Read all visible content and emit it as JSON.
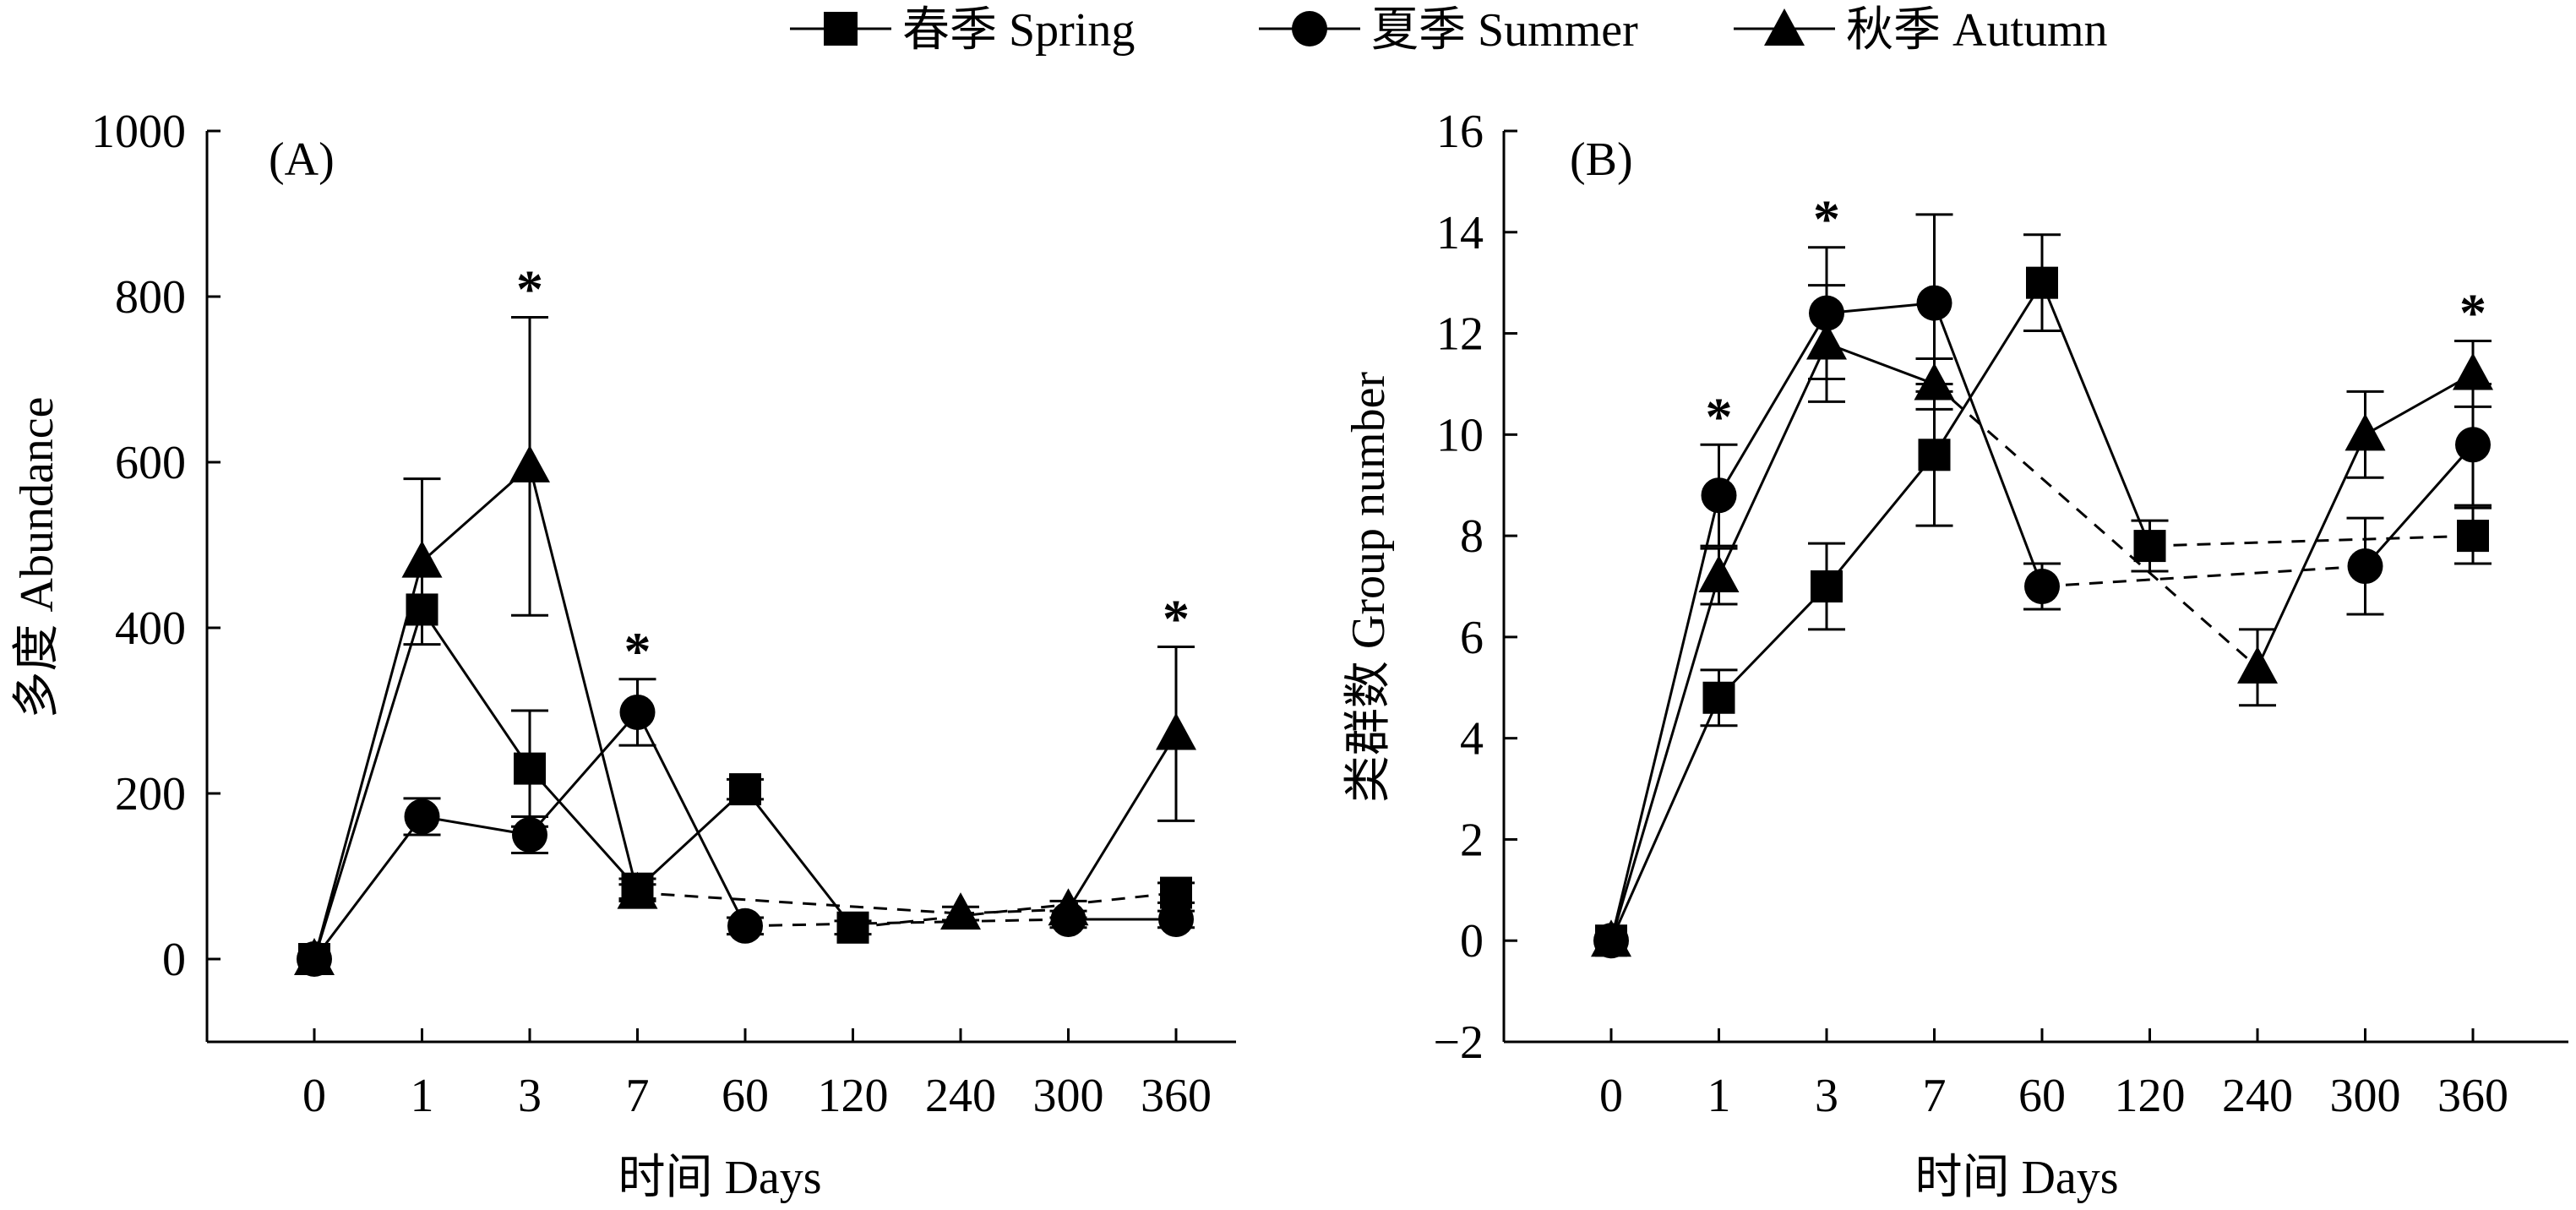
{
  "legend": {
    "items": [
      {
        "label": "春季 Spring",
        "series_key": "spring",
        "marker": "square"
      },
      {
        "label": "夏季 Summer",
        "series_key": "summer",
        "marker": "circle"
      },
      {
        "label": "秋季 Autumn",
        "series_key": "autumn",
        "marker": "triangle"
      }
    ]
  },
  "chart_data": [
    {
      "type": "line",
      "panel_label": "(A)",
      "title": "",
      "xlabel": "时间 Days",
      "ylabel": "多度 Abundance",
      "categories": [
        "0",
        "1",
        "3",
        "7",
        "60",
        "120",
        "240",
        "300",
        "360"
      ],
      "ylim": [
        -100,
        1000
      ],
      "yticks": [
        0,
        200,
        400,
        600,
        800,
        1000
      ],
      "series": [
        {
          "name": "春季 Spring",
          "key": "spring",
          "marker": "square",
          "points": [
            {
              "x": "0",
              "y": 0,
              "err": 0
            },
            {
              "x": "1",
              "y": 422,
              "err": 0
            },
            {
              "x": "3",
              "y": 230,
              "err": 70
            },
            {
              "x": "7",
              "y": 85,
              "err": 12
            },
            {
              "x": "60",
              "y": 205,
              "err": 12
            },
            {
              "x": "120",
              "y": 38,
              "err": 8
            },
            {
              "x": "360",
              "y": 80,
              "err": 12
            }
          ],
          "segments": [
            {
              "from": "0",
              "to": "1",
              "dashed": false
            },
            {
              "from": "1",
              "to": "3",
              "dashed": false
            },
            {
              "from": "3",
              "to": "7",
              "dashed": false
            },
            {
              "from": "7",
              "to": "60",
              "dashed": false
            },
            {
              "from": "60",
              "to": "120",
              "dashed": false
            },
            {
              "from": "120",
              "to": "360",
              "dashed": true
            }
          ]
        },
        {
          "name": "夏季 Summer",
          "key": "summer",
          "marker": "circle",
          "points": [
            {
              "x": "0",
              "y": 0,
              "err": 0
            },
            {
              "x": "1",
              "y": 172,
              "err": 22
            },
            {
              "x": "3",
              "y": 150,
              "err": 22
            },
            {
              "x": "7",
              "y": 298,
              "err": 40
            },
            {
              "x": "60",
              "y": 40,
              "err": 10
            },
            {
              "x": "300",
              "y": 48,
              "err": 10
            },
            {
              "x": "360",
              "y": 48,
              "err": 10
            }
          ],
          "segments": [
            {
              "from": "0",
              "to": "1",
              "dashed": false
            },
            {
              "from": "1",
              "to": "3",
              "dashed": false
            },
            {
              "from": "3",
              "to": "7",
              "dashed": false
            },
            {
              "from": "7",
              "to": "60",
              "dashed": false
            },
            {
              "from": "60",
              "to": "300",
              "dashed": true
            },
            {
              "from": "300",
              "to": "360",
              "dashed": false
            }
          ]
        },
        {
          "name": "秋季 Autumn",
          "key": "autumn",
          "marker": "triangle",
          "points": [
            {
              "x": "0",
              "y": 0,
              "err": 0
            },
            {
              "x": "1",
              "y": 480,
              "err": 100
            },
            {
              "x": "3",
              "y": 595,
              "err": 180
            },
            {
              "x": "7",
              "y": 80,
              "err": 10
            },
            {
              "x": "240",
              "y": 55,
              "err": 8
            },
            {
              "x": "300",
              "y": 60,
              "err": 10
            },
            {
              "x": "360",
              "y": 272,
              "err": 105
            }
          ],
          "segments": [
            {
              "from": "0",
              "to": "1",
              "dashed": false
            },
            {
              "from": "1",
              "to": "3",
              "dashed": false
            },
            {
              "from": "3",
              "to": "7",
              "dashed": false
            },
            {
              "from": "7",
              "to": "240",
              "dashed": true
            },
            {
              "from": "240",
              "to": "300",
              "dashed": true
            },
            {
              "from": "300",
              "to": "360",
              "dashed": false
            }
          ]
        }
      ],
      "annotations": [
        {
          "x": "3",
          "text": "*"
        },
        {
          "x": "7",
          "text": "*"
        },
        {
          "x": "360",
          "text": "*"
        }
      ]
    },
    {
      "type": "line",
      "panel_label": "(B)",
      "title": "",
      "xlabel": "时间 Days",
      "ylabel": "类群数 Group number",
      "categories": [
        "0",
        "1",
        "3",
        "7",
        "60",
        "120",
        "240",
        "300",
        "360"
      ],
      "ylim": [
        -2,
        16
      ],
      "yticks": [
        -2,
        0,
        2,
        4,
        6,
        8,
        10,
        12,
        14,
        16
      ],
      "series": [
        {
          "name": "春季 Spring",
          "key": "spring",
          "marker": "square",
          "points": [
            {
              "x": "0",
              "y": 0,
              "err": 0
            },
            {
              "x": "1",
              "y": 4.8,
              "err": 0.55
            },
            {
              "x": "3",
              "y": 7.0,
              "err": 0.85
            },
            {
              "x": "7",
              "y": 9.6,
              "err": 1.4
            },
            {
              "x": "60",
              "y": 13.0,
              "err": 0.95
            },
            {
              "x": "120",
              "y": 7.8,
              "err": 0.5
            },
            {
              "x": "360",
              "y": 8.0,
              "err": 0.55
            }
          ],
          "segments": [
            {
              "from": "0",
              "to": "1",
              "dashed": false
            },
            {
              "from": "1",
              "to": "3",
              "dashed": false
            },
            {
              "from": "3",
              "to": "7",
              "dashed": false
            },
            {
              "from": "7",
              "to": "60",
              "dashed": false
            },
            {
              "from": "60",
              "to": "120",
              "dashed": false
            },
            {
              "from": "120",
              "to": "360",
              "dashed": true
            }
          ]
        },
        {
          "name": "夏季 Summer",
          "key": "summer",
          "marker": "circle",
          "points": [
            {
              "x": "0",
              "y": 0,
              "err": 0
            },
            {
              "x": "1",
              "y": 8.8,
              "err": 1.0
            },
            {
              "x": "3",
              "y": 12.4,
              "err": 1.3
            },
            {
              "x": "7",
              "y": 12.6,
              "err": 1.75
            },
            {
              "x": "60",
              "y": 7.0,
              "err": 0.45
            },
            {
              "x": "300",
              "y": 7.4,
              "err": 0.95
            },
            {
              "x": "360",
              "y": 9.8,
              "err": 1.2
            }
          ],
          "segments": [
            {
              "from": "0",
              "to": "1",
              "dashed": false
            },
            {
              "from": "1",
              "to": "3",
              "dashed": false
            },
            {
              "from": "3",
              "to": "7",
              "dashed": false
            },
            {
              "from": "7",
              "to": "60",
              "dashed": false
            },
            {
              "from": "60",
              "to": "300",
              "dashed": true
            },
            {
              "from": "300",
              "to": "360",
              "dashed": false
            }
          ]
        },
        {
          "name": "秋季 Autumn",
          "key": "autumn",
          "marker": "triangle",
          "points": [
            {
              "x": "0",
              "y": 0,
              "err": 0
            },
            {
              "x": "1",
              "y": 7.2,
              "err": 0.55
            },
            {
              "x": "3",
              "y": 11.8,
              "err": 1.15
            },
            {
              "x": "7",
              "y": 11.0,
              "err": 0.5
            },
            {
              "x": "240",
              "y": 5.4,
              "err": 0.75
            },
            {
              "x": "300",
              "y": 10.0,
              "err": 0.85
            },
            {
              "x": "360",
              "y": 11.2,
              "err": 0.65
            }
          ],
          "segments": [
            {
              "from": "0",
              "to": "1",
              "dashed": false
            },
            {
              "from": "1",
              "to": "3",
              "dashed": false
            },
            {
              "from": "3",
              "to": "7",
              "dashed": false
            },
            {
              "from": "7",
              "to": "240",
              "dashed": true
            },
            {
              "from": "240",
              "to": "300",
              "dashed": false
            },
            {
              "from": "300",
              "to": "360",
              "dashed": false
            }
          ]
        }
      ],
      "annotations": [
        {
          "x": "1",
          "text": "*"
        },
        {
          "x": "3",
          "text": "*"
        },
        {
          "x": "360",
          "text": "*"
        }
      ]
    }
  ]
}
